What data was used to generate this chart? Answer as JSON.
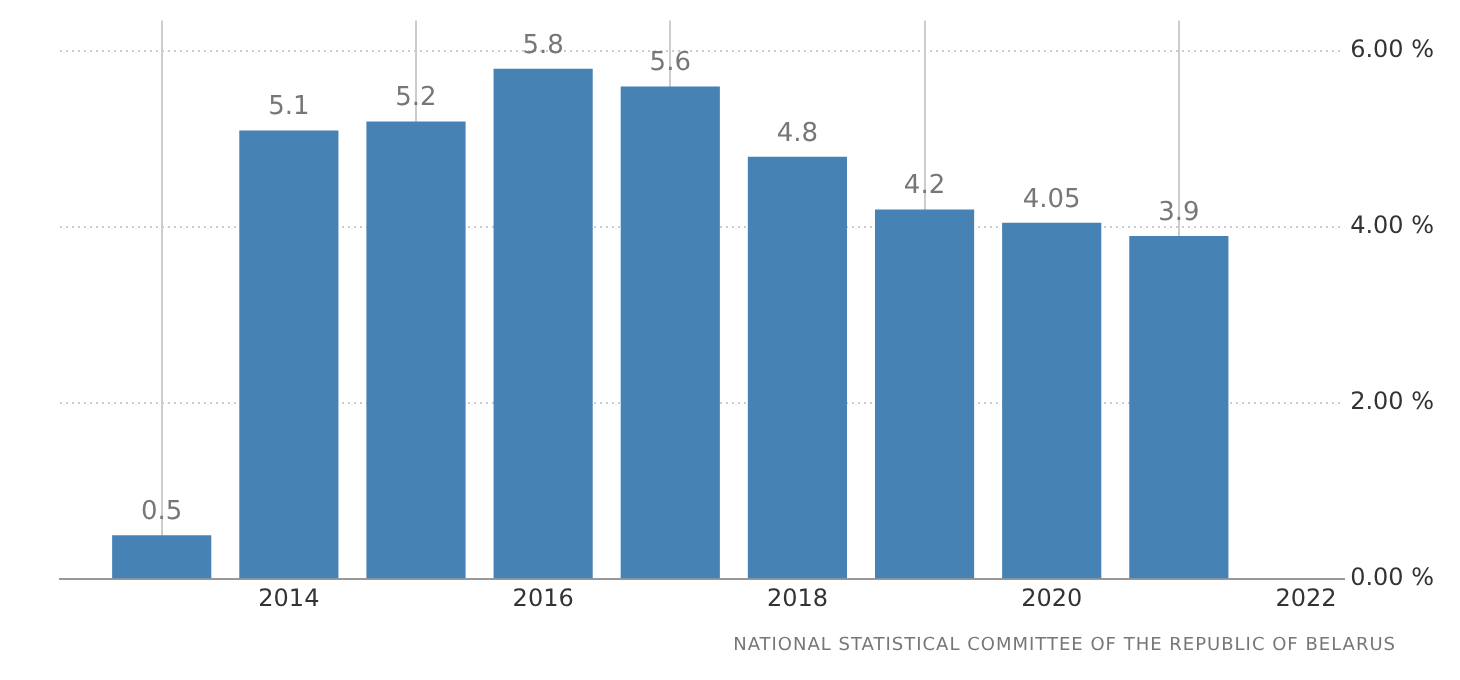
{
  "chart_data": {
    "type": "bar",
    "x": [
      2013,
      2014,
      2015,
      2016,
      2017,
      2018,
      2019,
      2020,
      2021
    ],
    "values": [
      0.5,
      5.1,
      5.2,
      5.8,
      5.6,
      4.8,
      4.2,
      4.05,
      3.9
    ],
    "color": "#4682b4",
    "xlim": [
      2012.2,
      2022.3
    ],
    "xticks": [
      2014,
      2016,
      2018,
      2020,
      2022
    ],
    "ylim": [
      0,
      6.35
    ],
    "yticks": [
      {
        "value": 0,
        "label": "0.00 %"
      },
      {
        "value": 2,
        "label": "2.00 %"
      },
      {
        "value": 4,
        "label": "4.00 %"
      },
      {
        "value": 6,
        "label": "6.00 %"
      }
    ],
    "grid": true,
    "data_labels": true,
    "annotations": [
      "NATIONAL STATISTICAL COMMITTEE OF THE REPUBLIC OF BELARUS"
    ]
  }
}
